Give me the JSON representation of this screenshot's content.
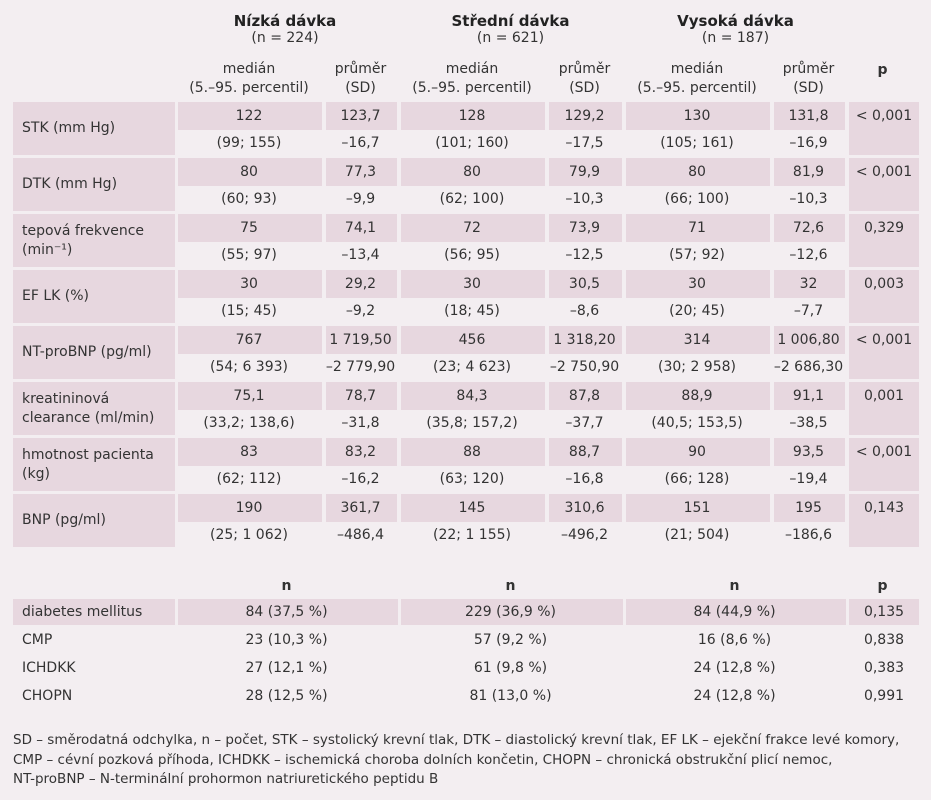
{
  "groups": [
    {
      "name": "Nízká dávka",
      "n": "(n = 224)"
    },
    {
      "name": "Střední dávka",
      "n": "(n = 621)"
    },
    {
      "name": "Vysoká dávka",
      "n": "(n = 187)"
    }
  ],
  "subheaders": {
    "median": [
      "medián",
      "(5.–95. percentil)"
    ],
    "mean": [
      "průměr",
      "(SD)"
    ],
    "p": "p"
  },
  "rows": [
    {
      "label": "STK (mm Hg)",
      "cells": [
        [
          "122",
          "(99; 155)"
        ],
        [
          "123,7",
          "–16,7"
        ],
        [
          "128",
          "(101; 160)"
        ],
        [
          "129,2",
          "–17,5"
        ],
        [
          "130",
          "(105; 161)"
        ],
        [
          "131,8",
          "–16,9"
        ]
      ],
      "p": "< 0,001"
    },
    {
      "label": "DTK (mm Hg)",
      "cells": [
        [
          "80",
          "(60; 93)"
        ],
        [
          "77,3",
          "–9,9"
        ],
        [
          "80",
          "(62; 100)"
        ],
        [
          "79,9",
          "–10,3"
        ],
        [
          "80",
          "(66; 100)"
        ],
        [
          "81,9",
          "–10,3"
        ]
      ],
      "p": "< 0,001"
    },
    {
      "label": "tepová frekvence (min⁻¹)",
      "cells": [
        [
          "75",
          "(55; 97)"
        ],
        [
          "74,1",
          "–13,4"
        ],
        [
          "72",
          "(56; 95)"
        ],
        [
          "73,9",
          "–12,5"
        ],
        [
          "71",
          "(57; 92)"
        ],
        [
          "72,6",
          "–12,6"
        ]
      ],
      "p": "0,329"
    },
    {
      "label": "EF LK (%)",
      "cells": [
        [
          "30",
          "(15; 45)"
        ],
        [
          "29,2",
          "–9,2"
        ],
        [
          "30",
          "(18; 45)"
        ],
        [
          "30,5",
          "–8,6"
        ],
        [
          "30",
          "(20; 45)"
        ],
        [
          "32",
          "–7,7"
        ]
      ],
      "p": "0,003"
    },
    {
      "label": "NT-proBNP (pg/ml)",
      "cells": [
        [
          "767",
          "(54; 6 393)"
        ],
        [
          "1 719,50",
          "–2 779,90"
        ],
        [
          "456",
          "(23; 4 623)"
        ],
        [
          "1 318,20",
          "–2 750,90"
        ],
        [
          "314",
          "(30; 2 958)"
        ],
        [
          "1 006,80",
          "–2 686,30"
        ]
      ],
      "p": "< 0,001"
    },
    {
      "label": "kreatininová clearance (ml/min)",
      "cells": [
        [
          "75,1",
          "(33,2; 138,6)"
        ],
        [
          "78,7",
          "–31,8"
        ],
        [
          "84,3",
          "(35,8; 157,2)"
        ],
        [
          "87,8",
          "–37,7"
        ],
        [
          "88,9",
          "(40,5; 153,5)"
        ],
        [
          "91,1",
          "–38,5"
        ]
      ],
      "p": "0,001"
    },
    {
      "label": "hmotnost pacienta (kg)",
      "cells": [
        [
          "83",
          "(62; 112)"
        ],
        [
          "83,2",
          "–16,2"
        ],
        [
          "88",
          "(63; 120)"
        ],
        [
          "88,7",
          "–16,8"
        ],
        [
          "90",
          "(66; 128)"
        ],
        [
          "93,5",
          "–19,4"
        ]
      ],
      "p": "< 0,001"
    },
    {
      "label": "BNP (pg/ml)",
      "cells": [
        [
          "190",
          "(25; 1 062)"
        ],
        [
          "361,7",
          "–486,4"
        ],
        [
          "145",
          "(22; 1 155)"
        ],
        [
          "310,6",
          "–496,2"
        ],
        [
          "151",
          "(21; 504)"
        ],
        [
          "195",
          "–186,6"
        ]
      ],
      "p": "0,143"
    }
  ],
  "lower_headers": {
    "n": "n",
    "p": "p"
  },
  "lower_rows": [
    {
      "label": "diabetes mellitus",
      "values": [
        "84 (37,5 %)",
        "229 (36,9 %)",
        "84 (44,9 %)"
      ],
      "p": "0,135"
    },
    {
      "label": "CMP",
      "values": [
        "23 (10,3 %)",
        "57 (9,2 %)",
        "16 (8,6 %)"
      ],
      "p": "0,838"
    },
    {
      "label": "ICHDKK",
      "values": [
        "27 (12,1 %)",
        "61 (9,8 %)",
        "24 (12,8 %)"
      ],
      "p": "0,383"
    },
    {
      "label": "CHOPN",
      "values": [
        "28 (12,5 %)",
        "81 (13,0 %)",
        "24 (12,8 %)"
      ],
      "p": "0,991"
    }
  ],
  "footnote": [
    "SD – směrodatná odchylka, n – počet, STK – systolický krevní tlak, DTK – diastolický krevní tlak, EF LK – ejekční frakce levé komory,",
    "CMP – cévní pozková příhoda, ICHDKK – ischemická choroba dolních končetin, CHOPN – chronická obstrukční plicí nemoc,",
    "NT-proBNP – N-terminální prohormon natriuretického peptidu B"
  ]
}
